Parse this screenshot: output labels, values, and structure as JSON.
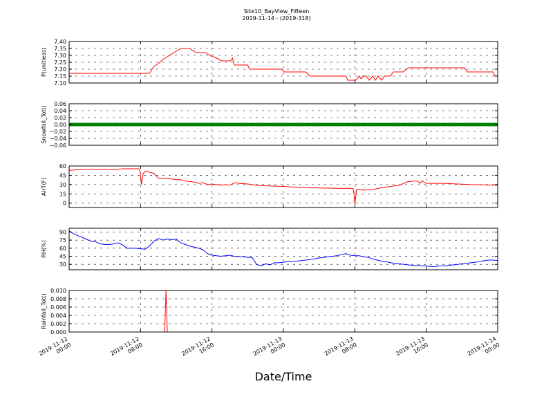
{
  "figure": {
    "title_line1": "Site10_BayView_Fifteen",
    "title_line2": "2019-11-14 - (2019-318)",
    "xlabel": "Date/Time",
    "xtick_labels": [
      [
        "2019-11-12",
        "00:00"
      ],
      [
        "2019-11-12",
        "08:00"
      ],
      [
        "2019-11-12",
        "16:00"
      ],
      [
        "2019-11-13",
        "00:00"
      ],
      [
        "2019-11-13",
        "08:00"
      ],
      [
        "2019-11-13",
        "16:00"
      ],
      [
        "2019-11-14",
        "00:00"
      ]
    ]
  },
  "chart_data": [
    {
      "type": "line",
      "ylabel": "P(unitless)",
      "ylim": [
        7.1,
        7.4
      ],
      "yticks": [
        "7.10",
        "7.15",
        "7.20",
        "7.25",
        "7.30",
        "7.35",
        "7.40"
      ],
      "color": "#ff0000",
      "x": [
        0,
        4,
        8.6,
        9,
        9.5,
        10,
        10.5,
        11,
        11.5,
        12,
        12.5,
        13,
        13.5,
        14.2,
        15.3,
        16,
        16.2,
        17.1,
        18.1,
        18.3,
        18.5,
        18.8,
        20,
        20.2,
        21.5,
        22,
        23.8,
        24.1,
        26.5,
        27,
        31,
        31.2,
        32.1,
        32.5,
        32.7,
        33,
        33.3,
        33.6,
        34,
        34.3,
        34.6,
        35,
        35.3,
        35.6,
        36,
        36.3,
        36.5,
        37,
        37.4,
        38,
        42,
        43,
        44.3,
        44.6,
        47,
        47.3,
        47.5,
        47.7,
        48
      ],
      "y": [
        7.17,
        7.17,
        7.17,
        7.17,
        7.22,
        7.24,
        7.27,
        7.29,
        7.31,
        7.33,
        7.35,
        7.35,
        7.35,
        7.32,
        7.32,
        7.29,
        7.29,
        7.26,
        7.26,
        7.28,
        7.23,
        7.23,
        7.23,
        7.2,
        7.2,
        7.2,
        7.2,
        7.18,
        7.18,
        7.15,
        7.15,
        7.12,
        7.12,
        7.15,
        7.13,
        7.15,
        7.15,
        7.12,
        7.15,
        7.12,
        7.15,
        7.12,
        7.15,
        7.15,
        7.15,
        7.18,
        7.18,
        7.18,
        7.18,
        7.21,
        7.21,
        7.21,
        7.21,
        7.18,
        7.18,
        7.18,
        7.18,
        7.15,
        7.15
      ]
    },
    {
      "type": "scatter",
      "ylabel": "Snowfall_Tot()",
      "ylim": [
        -0.06,
        0.06
      ],
      "yticks": [
        "−0.06",
        "−0.04",
        "−0.02",
        "0.00",
        "0.02",
        "0.04",
        "0.06"
      ],
      "color": "#008000",
      "x_range": [
        0,
        48
      ],
      "x_step": 0.25,
      "constant_value": 0.0
    },
    {
      "type": "line",
      "ylabel": "AirT(F)",
      "ylim": [
        -7,
        60
      ],
      "yticks": [
        "0",
        "15",
        "30",
        "45",
        "60"
      ],
      "color": "#ff0000",
      "x": [
        0,
        1,
        2,
        3,
        4,
        5,
        6,
        7.8,
        7.95,
        8.1,
        8.3,
        8.6,
        9,
        9.5,
        10,
        11,
        12,
        12.5,
        13,
        14,
        14.5,
        15,
        15.5,
        16,
        17,
        17.5,
        18,
        18.5,
        19,
        20,
        21,
        22,
        24,
        26,
        28,
        30,
        31.5,
        31.8,
        31.9,
        32,
        32.2,
        33,
        34,
        35,
        36,
        36.5,
        37,
        38,
        39,
        39.3,
        39.5,
        40,
        42,
        45,
        48
      ],
      "y": [
        53,
        54,
        54.5,
        54.5,
        54.5,
        54,
        55.5,
        55.5,
        52,
        30,
        48,
        52,
        50,
        48,
        40,
        40,
        38,
        38,
        36,
        34,
        32,
        33,
        30,
        31,
        29,
        30,
        29,
        33,
        32,
        31,
        29,
        28,
        27,
        25,
        24.5,
        24,
        24,
        23.5,
        15,
        -1,
        22,
        21,
        22,
        25,
        27,
        28,
        29,
        35,
        36,
        32,
        36,
        32,
        32,
        30,
        29
      ]
    },
    {
      "type": "line",
      "ylabel": "RH(%)",
      "ylim": [
        20,
        97
      ],
      "yticks": [
        "30",
        "45",
        "60",
        "75",
        "90"
      ],
      "color": "#0000ff",
      "x": [
        0,
        0.5,
        1,
        1.5,
        2,
        2.5,
        3,
        3.5,
        4,
        4.5,
        5,
        5.5,
        6,
        6.5,
        7,
        7.5,
        8,
        8.5,
        9,
        9.5,
        10,
        10.5,
        11,
        11.5,
        12,
        12.5,
        13,
        13.5,
        14,
        14.5,
        15,
        15.5,
        16,
        16.5,
        17,
        17.5,
        18,
        18.5,
        19,
        19.5,
        20,
        20.5,
        21,
        21.5,
        22,
        22.5,
        23,
        23.5,
        24,
        24.5,
        25,
        25.5,
        26,
        26.5,
        27,
        27.5,
        28,
        28.5,
        29,
        29.5,
        30,
        30.5,
        31,
        31.5,
        32,
        32.5,
        33,
        33.5,
        34,
        34.5,
        35,
        35.5,
        36,
        36.5,
        37,
        37.5,
        38,
        38.5,
        39,
        39.5,
        40,
        40.5,
        41,
        41.5,
        42,
        42.5,
        43,
        43.5,
        44,
        44.5,
        45,
        45.5,
        46,
        46.5,
        47,
        47.5,
        48
      ],
      "y": [
        92,
        87,
        83,
        80,
        76,
        73,
        72,
        68,
        67,
        67,
        68,
        70,
        66,
        60,
        60,
        60,
        59,
        58,
        64,
        73,
        78,
        75,
        77,
        76,
        77,
        70,
        67,
        64,
        62,
        60,
        57,
        50,
        47,
        46,
        45,
        46,
        47,
        45,
        44,
        44,
        43,
        43,
        30,
        27,
        31,
        29,
        33,
        33,
        34,
        35,
        35,
        36,
        37,
        38,
        39,
        40,
        42,
        43,
        44,
        45,
        46,
        48,
        50,
        47,
        46,
        46,
        44,
        43,
        40,
        38,
        36,
        35,
        33,
        32,
        31,
        30,
        29,
        28,
        28,
        27,
        27,
        26,
        26,
        27,
        27,
        28,
        29,
        30,
        31,
        32,
        33,
        34,
        35,
        37,
        38,
        38,
        37
      ]
    },
    {
      "type": "line",
      "ylabel": "Rainfall_Tot()",
      "ylim": [
        0.0,
        0.01
      ],
      "yticks": [
        "0.000",
        "0.002",
        "0.004",
        "0.006",
        "0.008",
        "0.010"
      ],
      "color": "#ff0000",
      "x": [
        0,
        10.7,
        10.85,
        11.0,
        48
      ],
      "y": [
        0,
        0,
        0.01,
        0,
        0
      ]
    }
  ]
}
